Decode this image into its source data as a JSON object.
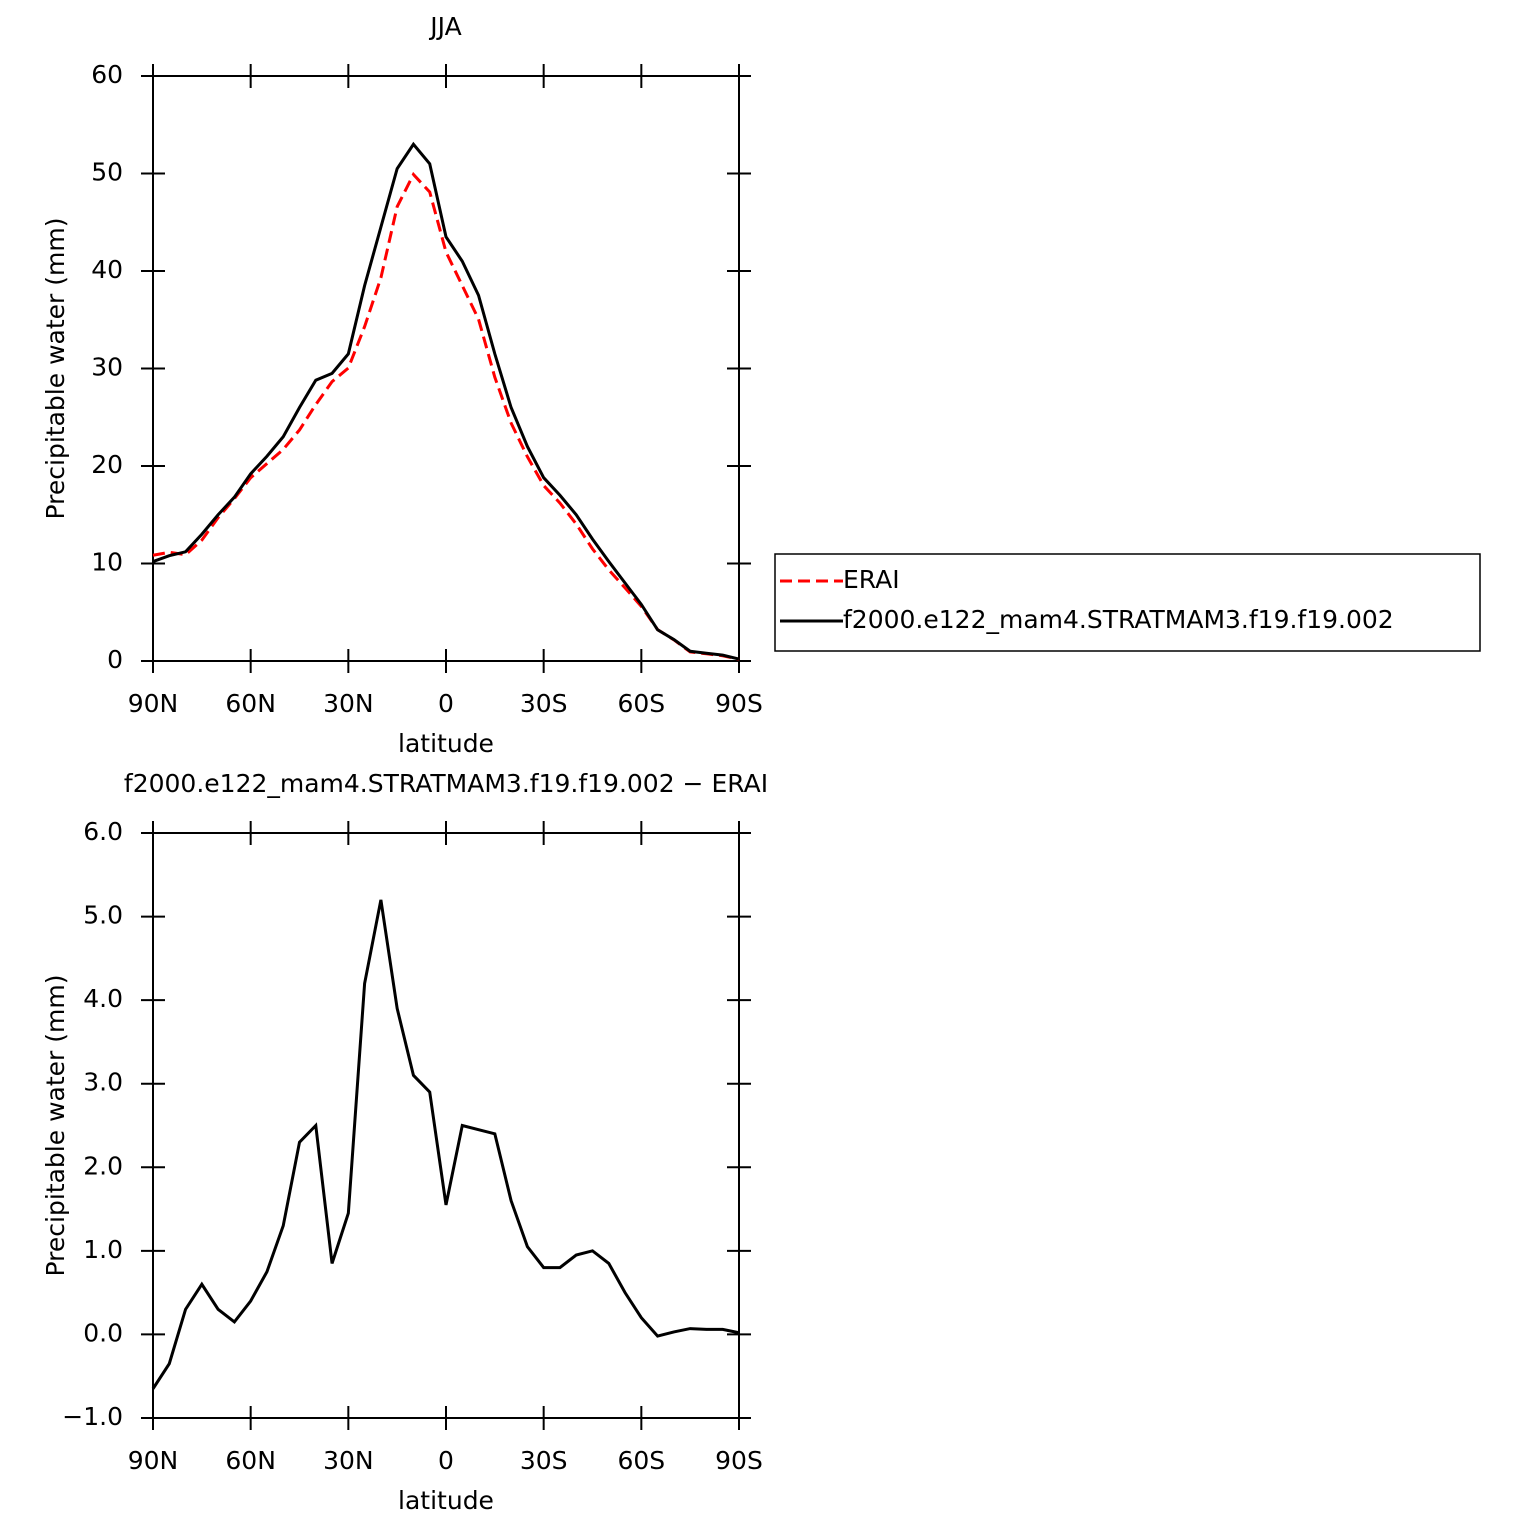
{
  "chart_data": [
    {
      "type": "line",
      "title": "JJA",
      "xlabel": "latitude",
      "ylabel": "Precipitable water (mm)",
      "x": [
        90,
        85,
        80,
        75,
        70,
        65,
        60,
        55,
        50,
        45,
        40,
        35,
        30,
        25,
        20,
        15,
        10,
        5,
        0,
        -5,
        -10,
        -15,
        -20,
        -25,
        -30,
        -35,
        -40,
        -45,
        -50,
        -55,
        -60,
        -65,
        -70,
        -75,
        -80,
        -85,
        -90
      ],
      "series": [
        {
          "name": "ERAI",
          "color": "#ff0000",
          "dash": true,
          "values": [
            10.85,
            11.15,
            10.9,
            12.4,
            14.7,
            16.65,
            18.8,
            20.25,
            21.7,
            23.7,
            26.3,
            28.65,
            30.05,
            34.3,
            39.3,
            46.6,
            49.9,
            48.1,
            41.95,
            38.5,
            35.05,
            29.1,
            24.4,
            20.95,
            18.0,
            16.2,
            14.05,
            11.5,
            9.35,
            7.5,
            5.6,
            3.22,
            2.17,
            0.93,
            0.74,
            0.54,
            0.18
          ]
        },
        {
          "name": "f2000.e122_mam4.STRATMAM3.f19.f19.002",
          "color": "#000000",
          "dash": false,
          "values": [
            10.2,
            10.8,
            11.2,
            13,
            15,
            16.8,
            19.2,
            21,
            23,
            26,
            28.8,
            29.5,
            31.5,
            38.5,
            44.5,
            50.5,
            53,
            51,
            43.5,
            41,
            37.5,
            31.5,
            26,
            22,
            18.8,
            17,
            15,
            12.5,
            10.2,
            8,
            5.8,
            3.2,
            2.2,
            1.0,
            0.8,
            0.6,
            0.2
          ]
        }
      ],
      "xlim": [
        90,
        -90
      ],
      "xticks": [
        {
          "value": 90,
          "label": "90N"
        },
        {
          "value": 60,
          "label": "60N"
        },
        {
          "value": 30,
          "label": "30N"
        },
        0,
        {
          "value": -30,
          "label": "30S"
        },
        {
          "value": -60,
          "label": "60S"
        },
        {
          "value": -90,
          "label": "90S"
        }
      ],
      "ylim": [
        0,
        60
      ],
      "yticks": [
        0,
        10,
        20,
        30,
        40,
        50,
        60
      ],
      "legend": "right"
    },
    {
      "type": "line",
      "title": "f2000.e122_mam4.STRATMAM3.f19.f19.002 − ERAI",
      "xlabel": "latitude",
      "ylabel": "Precipitable water (mm)",
      "x": [
        90,
        85,
        80,
        75,
        70,
        65,
        60,
        55,
        50,
        45,
        40,
        35,
        30,
        25,
        20,
        15,
        10,
        5,
        0,
        -5,
        -10,
        -15,
        -20,
        -25,
        -30,
        -35,
        -40,
        -45,
        -50,
        -55,
        -60,
        -65,
        -70,
        -75,
        -80,
        -85,
        -90
      ],
      "series": [
        {
          "color": "#000000",
          "dash": false,
          "values": [
            -0.65,
            -0.35,
            0.3,
            0.6,
            0.3,
            0.15,
            0.4,
            0.75,
            1.3,
            2.3,
            2.5,
            0.85,
            1.45,
            4.2,
            5.2,
            3.9,
            3.1,
            2.9,
            1.55,
            2.5,
            2.45,
            2.4,
            1.6,
            1.05,
            0.8,
            0.8,
            0.95,
            1.0,
            0.85,
            0.5,
            0.2,
            -0.02,
            0.03,
            0.07,
            0.06,
            0.06,
            0.02
          ]
        }
      ],
      "xlim": [
        90,
        -90
      ],
      "xticks": [
        {
          "value": 90,
          "label": "90N"
        },
        {
          "value": 60,
          "label": "60N"
        },
        {
          "value": 30,
          "label": "30N"
        },
        0,
        {
          "value": -30,
          "label": "30S"
        },
        {
          "value": -60,
          "label": "60S"
        },
        {
          "value": -90,
          "label": "90S"
        }
      ],
      "ylim": [
        -1,
        6
      ],
      "yticks": [
        {
          "value": -1,
          "label": "−1.0"
        },
        {
          "value": 0,
          "label": "0.0"
        },
        {
          "value": 1,
          "label": "1.0"
        },
        {
          "value": 2,
          "label": "2.0"
        },
        {
          "value": 3,
          "label": "3.0"
        },
        {
          "value": 4,
          "label": "4.0"
        },
        {
          "value": 5,
          "label": "5.0"
        },
        {
          "value": 6,
          "label": "6.0"
        }
      ]
    }
  ]
}
